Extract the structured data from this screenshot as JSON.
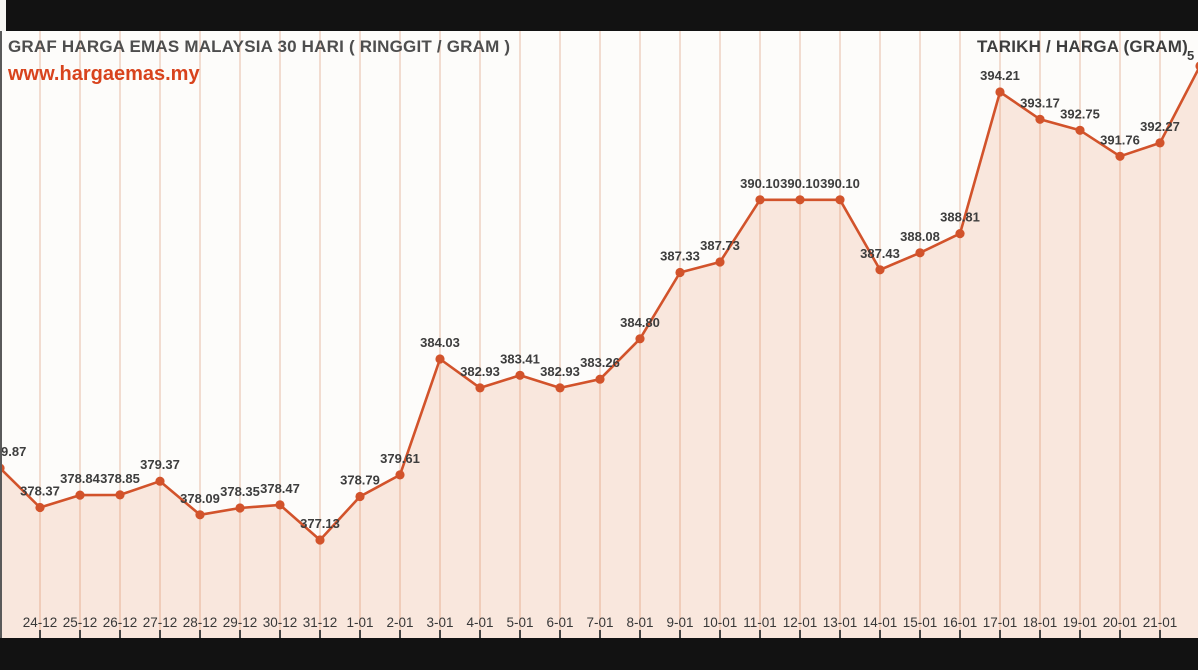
{
  "window": {
    "top_bar_color": "#121212",
    "bottom_bar_color": "#121212",
    "canvas_color": "#fdfcfa"
  },
  "header": {
    "title": "GRAF HARGA EMAS MALAYSIA 30 HARI ( RINGGIT / GRAM )",
    "website": "www.hargaemas.my",
    "right_label": "TARIKH / HARGA (GRAM)"
  },
  "chart_data": {
    "type": "line",
    "title": "GRAF HARGA EMAS MALAYSIA 30 HARI ( RINGGIT / GRAM )",
    "xlabel": "TARIKH",
    "ylabel": "HARGA (GRAM)",
    "legend": "none",
    "grid": "vertical-only",
    "ylim": [
      373.5,
      396.5
    ],
    "categories": [
      "24-12",
      "25-12",
      "26-12",
      "27-12",
      "28-12",
      "29-12",
      "30-12",
      "31-12",
      "1-01",
      "2-01",
      "3-01",
      "4-01",
      "5-01",
      "6-01",
      "7-01",
      "8-01",
      "9-01",
      "10-01",
      "11-01",
      "12-01",
      "13-01",
      "14-01",
      "15-01",
      "16-01",
      "17-01",
      "18-01",
      "19-01",
      "20-01",
      "21-01"
    ],
    "values": [
      378.37,
      378.84,
      378.85,
      379.37,
      378.09,
      378.35,
      378.47,
      377.13,
      378.79,
      379.61,
      384.03,
      382.93,
      383.41,
      382.93,
      383.26,
      384.8,
      387.33,
      387.73,
      390.1,
      390.1,
      390.1,
      387.43,
      388.08,
      388.81,
      394.21,
      393.17,
      392.75,
      391.76,
      392.27
    ],
    "clipped_left_point": {
      "visible_label": "9.87",
      "approx_value": 379.87
    },
    "clipped_right_point": {
      "visible_label": "5",
      "approx_value": 395.2
    },
    "colors": {
      "line": "#d2532b",
      "point": "#d2532b",
      "area_fill": "#f9e7dd",
      "gridline": "#d06e3c",
      "value_label": "#3d3d3d",
      "date_label": "#383838",
      "axis_line": "#5a5a5a",
      "tick": "#444444"
    }
  }
}
